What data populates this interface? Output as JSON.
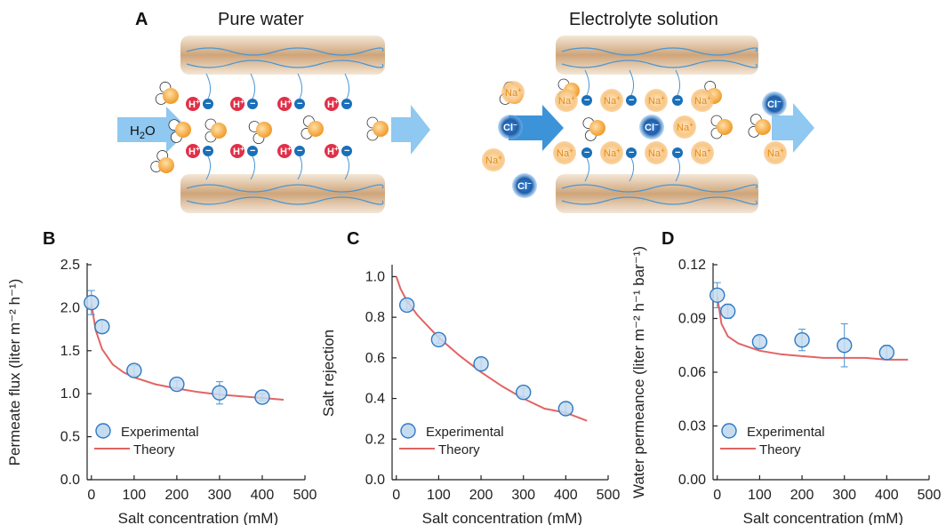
{
  "panel_a": {
    "letter": "A",
    "left_title": "Pure water",
    "right_title": "Electrolyte solution",
    "h2o_main": "H",
    "h2o_sub": "2",
    "h2o_end": "O",
    "h_plus": "H",
    "na_plus": "Na",
    "cl_minus": "Cl",
    "plus_sign": "+",
    "minus_sign": "−",
    "colors": {
      "arrow": "#8fc8f0",
      "membrane": "#cfa57a",
      "proton": "#e03048",
      "sulfonate": "#1a6fb8",
      "sodium": "#f7b96a",
      "chloride": "#1d5ea8",
      "fiber": "#4a96d4"
    }
  },
  "chart_data": [
    {
      "type": "scatter",
      "panel": "B",
      "xlabel": "Salt concentration (mM)",
      "ylabel": "Permeate flux (liter m⁻² h⁻¹)",
      "xlim": [
        -10,
        500
      ],
      "ylim": [
        0,
        2.5
      ],
      "xticks": [
        0,
        100,
        200,
        300,
        400,
        500
      ],
      "yticks": [
        0.0,
        0.5,
        1.0,
        1.5,
        2.0,
        2.5
      ],
      "ytick_decimals": 1,
      "series": [
        {
          "name": "Experimental",
          "kind": "points",
          "x": [
            0,
            25,
            100,
            200,
            300,
            400
          ],
          "y": [
            2.06,
            1.78,
            1.27,
            1.11,
            1.01,
            0.96
          ],
          "err": [
            0.14,
            0.07,
            0.06,
            0.04,
            0.13,
            0.04
          ]
        },
        {
          "name": "Theory",
          "kind": "line",
          "x": [
            0,
            10,
            25,
            50,
            75,
            100,
            150,
            200,
            250,
            300,
            350,
            400,
            450
          ],
          "y": [
            2.05,
            1.74,
            1.52,
            1.34,
            1.25,
            1.19,
            1.11,
            1.06,
            1.02,
            0.99,
            0.97,
            0.95,
            0.93
          ]
        }
      ],
      "legend": {
        "placement": "bottom-left",
        "entries": [
          "Experimental",
          "Theory"
        ]
      }
    },
    {
      "type": "scatter",
      "panel": "C",
      "xlabel": "Salt concentration (mM)",
      "ylabel": "Salt  rejection",
      "xlim": [
        -10,
        500
      ],
      "ylim": [
        0,
        1.05
      ],
      "xticks": [
        0,
        100,
        200,
        300,
        400,
        500
      ],
      "yticks": [
        0.0,
        0.2,
        0.4,
        0.6,
        0.8,
        1.0
      ],
      "ytick_decimals": 1,
      "series": [
        {
          "name": "Experimental",
          "kind": "points",
          "x": [
            25,
            100,
            200,
            300,
            400
          ],
          "y": [
            0.86,
            0.69,
            0.57,
            0.43,
            0.35
          ],
          "err": [
            0.02,
            0.02,
            0.03,
            0.02,
            0.03
          ]
        },
        {
          "name": "Theory",
          "kind": "line",
          "x": [
            0,
            10,
            25,
            50,
            100,
            150,
            200,
            250,
            300,
            350,
            400,
            450
          ],
          "y": [
            1.0,
            0.94,
            0.88,
            0.81,
            0.7,
            0.61,
            0.53,
            0.46,
            0.4,
            0.35,
            0.33,
            0.29
          ]
        }
      ],
      "legend": {
        "placement": "bottom-left",
        "entries": [
          "Experimental",
          "Theory"
        ]
      }
    },
    {
      "type": "scatter",
      "panel": "D",
      "xlabel": "Salt concentration (mM)",
      "ylabel": "Water permeance (liter m⁻² h⁻¹ bar⁻¹)",
      "xlim": [
        -10,
        500
      ],
      "ylim": [
        0,
        0.12
      ],
      "xticks": [
        0,
        100,
        200,
        300,
        400,
        500
      ],
      "yticks": [
        0.0,
        0.03,
        0.06,
        0.09,
        0.12
      ],
      "ytick_decimals": 2,
      "series": [
        {
          "name": "Experimental",
          "kind": "points",
          "x": [
            0,
            25,
            100,
            200,
            300,
            400
          ],
          "y": [
            0.103,
            0.094,
            0.077,
            0.078,
            0.075,
            0.071
          ],
          "err": [
            0.007,
            0.004,
            0.003,
            0.006,
            0.012,
            0.004
          ]
        },
        {
          "name": "Theory",
          "kind": "line",
          "x": [
            0,
            10,
            25,
            50,
            75,
            100,
            150,
            200,
            250,
            300,
            350,
            400,
            450
          ],
          "y": [
            0.102,
            0.087,
            0.08,
            0.076,
            0.074,
            0.072,
            0.07,
            0.069,
            0.068,
            0.068,
            0.068,
            0.067,
            0.067
          ]
        }
      ],
      "legend": {
        "placement": "bottom-left",
        "entries": [
          "Experimental",
          "Theory"
        ]
      }
    }
  ],
  "colors": {
    "point_fill": "#c5dcf0",
    "point_stroke": "#2f7ac4",
    "errorbar": "#4a90d0",
    "theory_line": "#e26464",
    "axis": "#222222"
  }
}
